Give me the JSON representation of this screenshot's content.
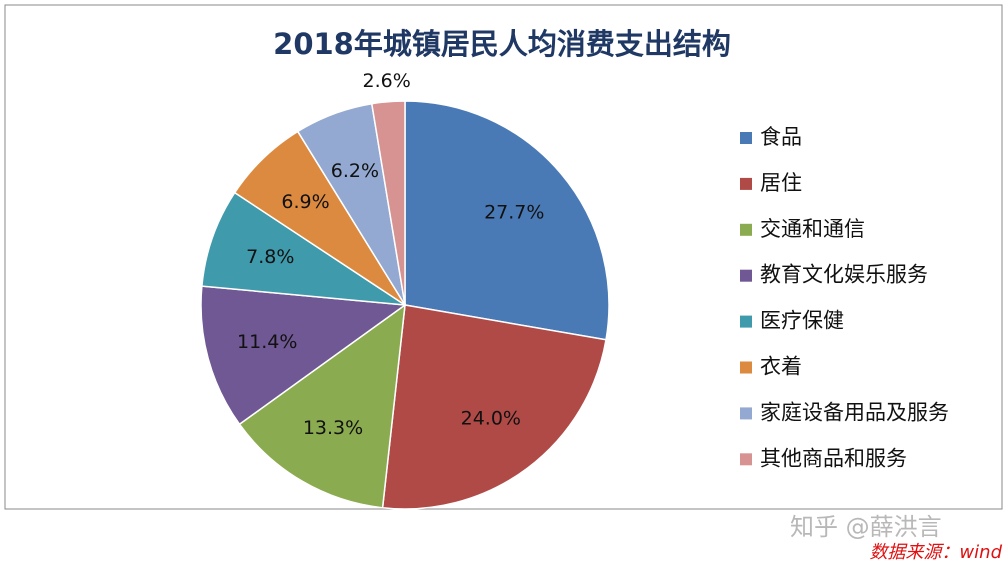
{
  "chart_data": {
    "type": "pie",
    "title": "2018年城镇居民人均消费支出结构",
    "categories": [
      "食品",
      "居住",
      "交通和通信",
      "教育文化娱乐服务",
      "医疗保健",
      "衣着",
      "家庭设备用品及服务",
      "其他商品和服务"
    ],
    "values": [
      27.7,
      24.0,
      13.3,
      11.4,
      7.8,
      6.9,
      6.2,
      2.6
    ],
    "value_labels": [
      "27.7%",
      "24.0%",
      "13.3%",
      "11.4%",
      "7.8%",
      "6.9%",
      "6.2%",
      "2.6%"
    ],
    "colors": [
      "#4a7ab5",
      "#b04a47",
      "#8aab4f",
      "#6f5893",
      "#3f9aac",
      "#dc8a3f",
      "#93a9d1",
      "#d69391"
    ],
    "legend": "right"
  },
  "watermark": "知乎 @薛洪言",
  "source": "数据来源：wind"
}
